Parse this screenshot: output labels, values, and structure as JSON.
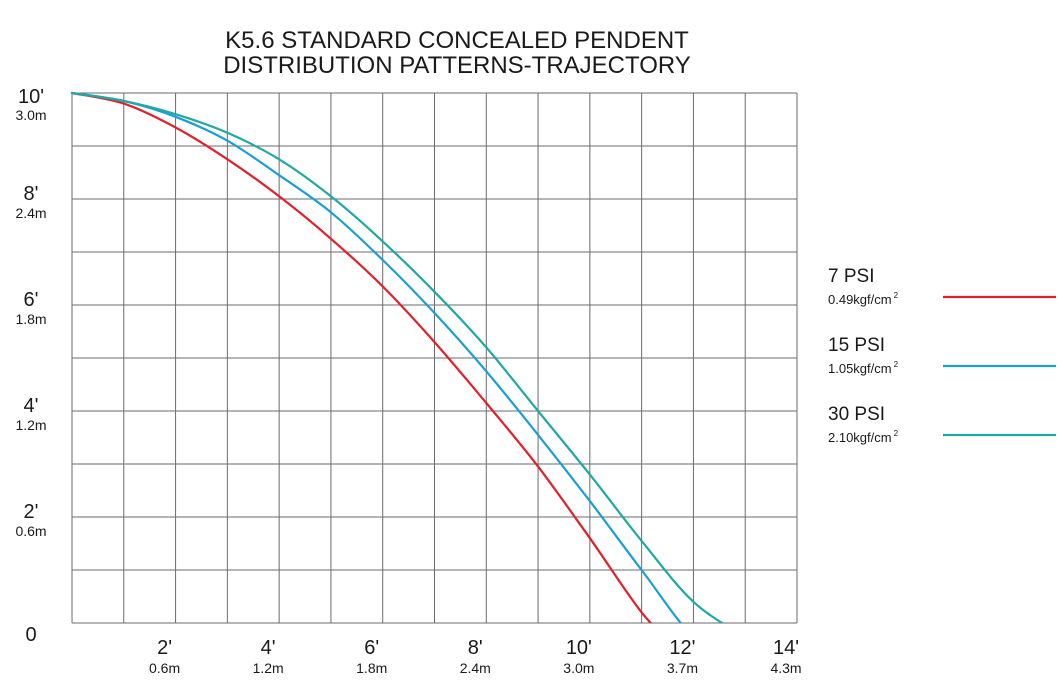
{
  "chart_data": {
    "type": "line",
    "title_lines": [
      "K5.6 STANDARD CONCEALED PENDENT",
      "DISTRIBUTION PATTERNS-TRAJECTORY"
    ],
    "xlim": [
      0,
      14
    ],
    "ylim": [
      0,
      10
    ],
    "grid": true,
    "grid_x_step": 1,
    "grid_y_step": 1,
    "x_ticks": [
      {
        "value": 2,
        "label": "2'",
        "sublabel": "0.6m"
      },
      {
        "value": 4,
        "label": "4'",
        "sublabel": "1.2m"
      },
      {
        "value": 6,
        "label": "6'",
        "sublabel": "1.8m"
      },
      {
        "value": 8,
        "label": "8'",
        "sublabel": "2.4m"
      },
      {
        "value": 10,
        "label": "10'",
        "sublabel": "3.0m"
      },
      {
        "value": 12,
        "label": "12'",
        "sublabel": "3.7m"
      },
      {
        "value": 14,
        "label": "14'",
        "sublabel": "4.3m"
      }
    ],
    "y_ticks": [
      {
        "value": 10,
        "label": "10'",
        "sublabel": "3.0m"
      },
      {
        "value": 8,
        "label": "8'",
        "sublabel": "2.4m"
      },
      {
        "value": 6,
        "label": "6'",
        "sublabel": "1.8m"
      },
      {
        "value": 4,
        "label": "4'",
        "sublabel": "1.2m"
      },
      {
        "value": 2,
        "label": "2'",
        "sublabel": "0.6m"
      },
      {
        "value": 0,
        "label": "0",
        "sublabel": ""
      }
    ],
    "legend_position": "right",
    "series": [
      {
        "name": "7 PSI",
        "unit_label": "0.49kgf/cm",
        "unit_sup": "2",
        "color": "#e2202b",
        "x": [
          0,
          1,
          2,
          3,
          4,
          5,
          6,
          7,
          8,
          9,
          10,
          11,
          11.7
        ],
        "y": [
          10,
          9.8,
          9.35,
          8.75,
          8.05,
          7.25,
          6.35,
          5.3,
          4.15,
          2.95,
          1.6,
          0.2,
          -0.5
        ]
      },
      {
        "name": "15 PSI",
        "unit_label": "1.05kgf/cm",
        "unit_sup": "2",
        "color": "#1a9ed9",
        "x": [
          0,
          1,
          2,
          3,
          4,
          5,
          6,
          7,
          8,
          9,
          10,
          11,
          12,
          12.8
        ],
        "y": [
          10,
          9.85,
          9.55,
          9.1,
          8.45,
          7.75,
          6.85,
          5.85,
          4.75,
          3.55,
          2.3,
          1.0,
          -0.25,
          -0.5
        ]
      },
      {
        "name": "30 PSI",
        "unit_label": "2.10kgf/cm",
        "unit_sup": "2",
        "color": "#1fa9a3",
        "x": [
          0,
          1,
          2,
          3,
          4,
          5,
          6,
          7,
          8,
          9,
          10,
          11,
          12,
          13,
          13.6
        ],
        "y": [
          10,
          9.85,
          9.6,
          9.25,
          8.75,
          8.05,
          7.2,
          6.25,
          5.2,
          4.0,
          2.8,
          1.55,
          0.4,
          -0.25,
          -0.5
        ]
      }
    ]
  }
}
